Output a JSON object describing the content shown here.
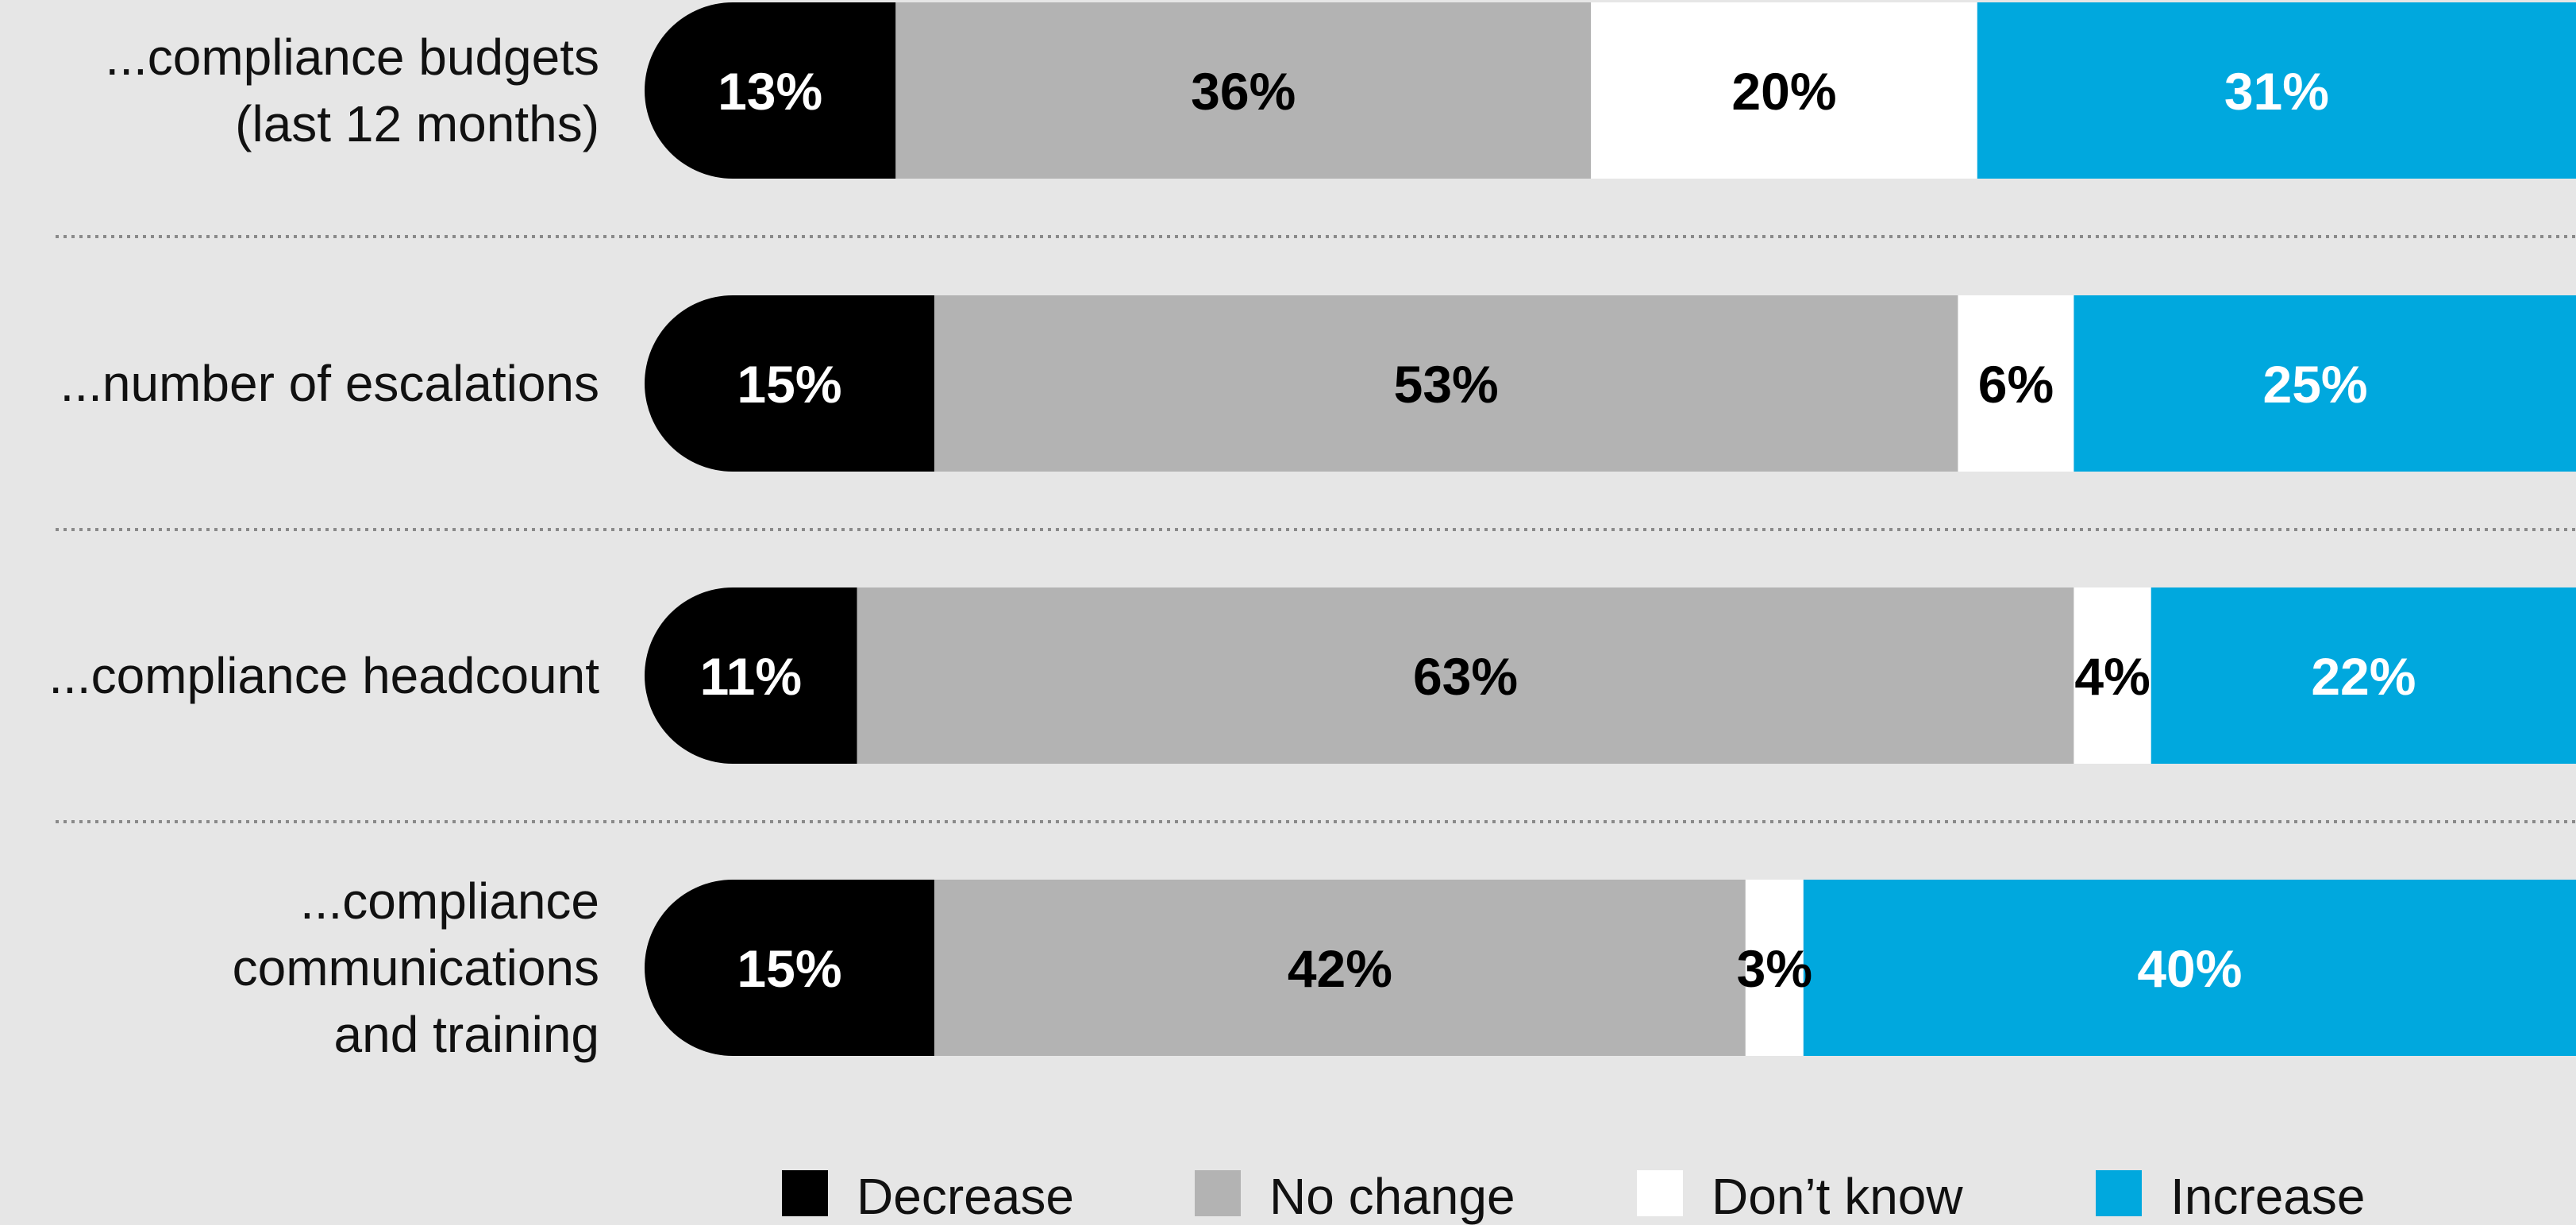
{
  "chart_data": {
    "type": "bar",
    "orientation": "horizontal",
    "stacked": true,
    "categories": [
      "...compliance budgets\n(last 12 months)",
      "...number of escalations",
      "...compliance headcount",
      "...compliance\ncommunications\nand training"
    ],
    "series": [
      {
        "name": "Decrease",
        "color": "#000000",
        "label_color": "#ffffff",
        "values": [
          13,
          15,
          11,
          15
        ]
      },
      {
        "name": "No change",
        "color": "#b3b3b3",
        "label_color": "#000000",
        "values": [
          36,
          53,
          63,
          42
        ]
      },
      {
        "name": "Don’t know",
        "color": "#ffffff",
        "label_color": "#000000",
        "values": [
          20,
          6,
          4,
          3
        ]
      },
      {
        "name": "Increase",
        "color": "#00a8de",
        "label_color": "#ffffff",
        "values": [
          31,
          25,
          22,
          40
        ]
      }
    ],
    "value_suffix": "%",
    "xlim": [
      0,
      100
    ],
    "legend_position": "bottom",
    "grid": false
  }
}
